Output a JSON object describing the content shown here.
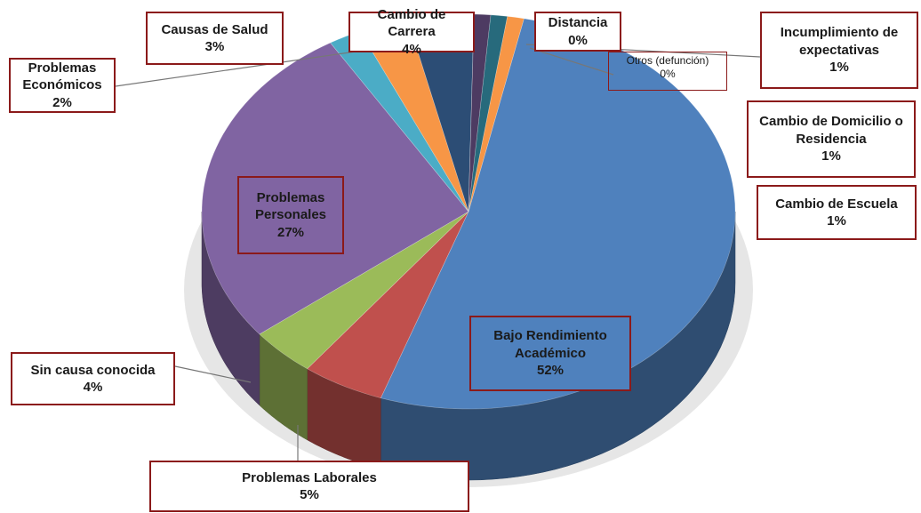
{
  "chart_data": {
    "type": "pie",
    "categories": [
      "Bajo Rendimiento Académico",
      "Problemas Laborales",
      "Sin causa conocida",
      "Problemas Personales",
      "Problemas Económicos",
      "Causas de Salud",
      "Cambio de Carrera",
      "Distancia",
      "Otros  (defunción)",
      "Incumplimiento de expectativas",
      "Cambio de Domicilio o Residencia",
      "Cambio de Escuela"
    ],
    "values": [
      52,
      5,
      4,
      27,
      2,
      3,
      4,
      0,
      0,
      1,
      1,
      1
    ],
    "value_labels": [
      "52%",
      "5%",
      "4%",
      "27%",
      "2%",
      "3%",
      "4%",
      "0%",
      "0%",
      "1%",
      "1%",
      "1%"
    ],
    "colors": [
      "#4f81bd",
      "#c0504d",
      "#9bbb59",
      "#8064a2",
      "#4bacc6",
      "#f79646",
      "#2c4d75",
      "#772c2a",
      "#5f7530",
      "#4d3b62",
      "#276a7c",
      "#f79646"
    ]
  }
}
